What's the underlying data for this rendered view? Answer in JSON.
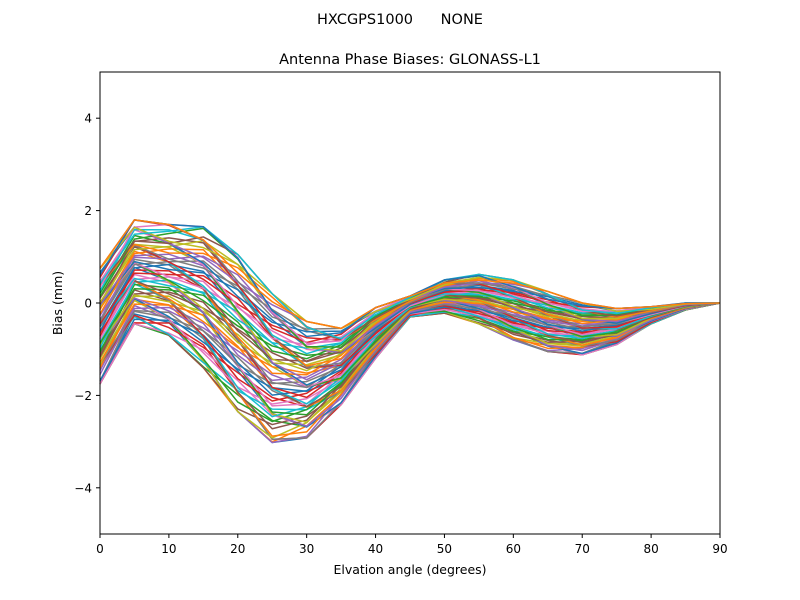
{
  "chart_data": {
    "type": "line",
    "suptitle": "HXCGPS1000      NONE",
    "title": "Antenna Phase Biases: GLONASS-L1",
    "xlabel": "Elvation angle (degrees)",
    "ylabel": "Bias (mm)",
    "xlim": [
      0,
      90
    ],
    "ylim": [
      -5,
      5
    ],
    "xticks": [
      0,
      10,
      20,
      30,
      40,
      50,
      60,
      70,
      80,
      90
    ],
    "yticks": [
      -4,
      -2,
      0,
      2,
      4
    ],
    "ytick_labels": [
      "−4",
      "−2",
      "0",
      "2",
      "4"
    ],
    "grid": false,
    "legend": "none",
    "x": [
      0,
      5,
      10,
      15,
      20,
      25,
      30,
      35,
      40,
      45,
      50,
      55,
      60,
      65,
      70,
      75,
      80,
      85,
      90
    ],
    "colors": [
      "#1f77b4",
      "#ff7f0e",
      "#2ca02c",
      "#d62728",
      "#9467bd",
      "#8c564b",
      "#e377c2",
      "#7f7f7f",
      "#bcbd22",
      "#17becf"
    ],
    "series_count": 72,
    "envelope": {
      "upper": [
        0.75,
        1.8,
        1.7,
        1.65,
        1.05,
        0.2,
        -0.4,
        -0.55,
        -0.1,
        0.15,
        0.5,
        0.62,
        0.5,
        0.25,
        0.0,
        -0.12,
        -0.08,
        0.0,
        0.0
      ],
      "lower": [
        -1.75,
        -0.45,
        -0.7,
        -1.4,
        -2.35,
        -3.02,
        -2.92,
        -2.2,
        -1.2,
        -0.3,
        -0.22,
        -0.45,
        -0.8,
        -1.05,
        -1.12,
        -0.9,
        -0.45,
        -0.15,
        0.0
      ]
    }
  }
}
